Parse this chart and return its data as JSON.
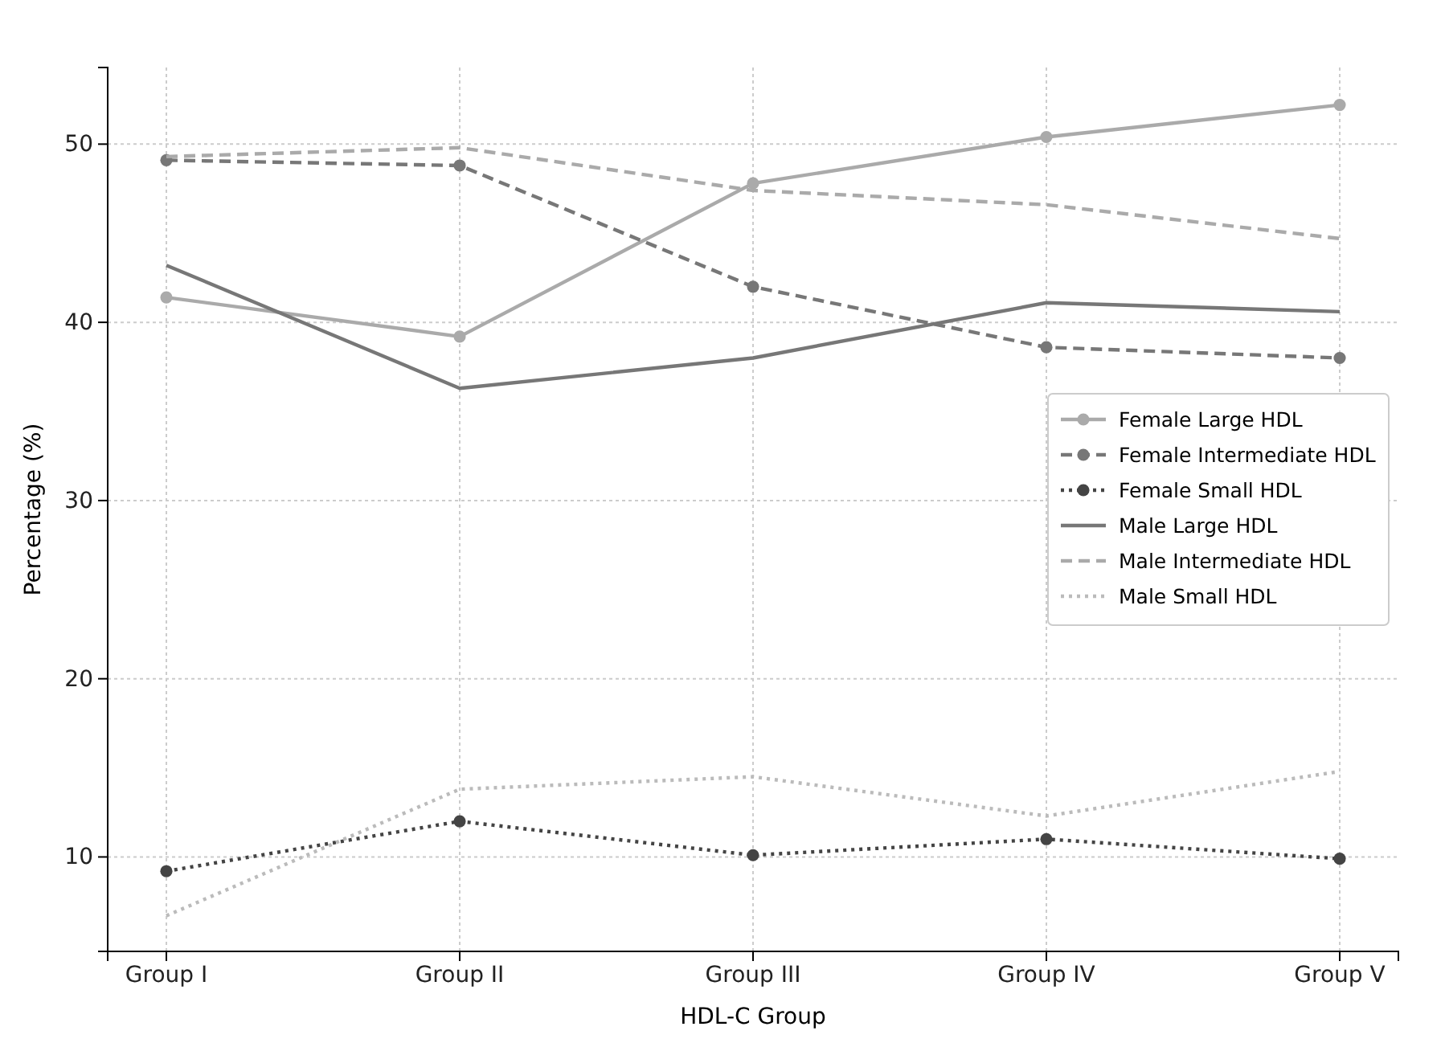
{
  "chart_data": {
    "type": "line",
    "xlabel": "HDL-C Group",
    "ylabel": "Percentage (%)",
    "categories": [
      "Group I",
      "Group II",
      "Group III",
      "Group IV",
      "Group V"
    ],
    "series": [
      {
        "name": "Female Large HDL",
        "color": "#aaaaaa",
        "marker": "circle",
        "line_style": "solid",
        "values": [
          41.4,
          39.2,
          47.8,
          50.4,
          52.2
        ]
      },
      {
        "name": "Female Intermediate HDL",
        "color": "#777777",
        "marker": "circle",
        "line_style": "dashed",
        "values": [
          49.1,
          48.8,
          42.0,
          38.6,
          38.0
        ]
      },
      {
        "name": "Female Small HDL",
        "color": "#444444",
        "marker": "circle",
        "line_style": "dotted",
        "values": [
          9.2,
          12.0,
          10.1,
          11.0,
          9.9
        ]
      },
      {
        "name": "Male Large HDL",
        "color": "#777777",
        "marker": "none",
        "line_style": "solid",
        "values": [
          43.2,
          36.3,
          38.0,
          41.1,
          40.6
        ]
      },
      {
        "name": "Male Intermediate HDL",
        "color": "#aaaaaa",
        "marker": "none",
        "line_style": "dashed",
        "values": [
          49.3,
          49.8,
          47.4,
          46.6,
          44.7
        ]
      },
      {
        "name": "Male Small HDL",
        "color": "#bbbbbb",
        "marker": "none",
        "line_style": "dotted",
        "values": [
          6.7,
          13.8,
          14.5,
          12.3,
          14.8
        ]
      }
    ],
    "ylim": [
      4.7,
      54.3
    ],
    "yticks": [
      10,
      20,
      30,
      40,
      50
    ],
    "grid": true,
    "legend": "right"
  }
}
